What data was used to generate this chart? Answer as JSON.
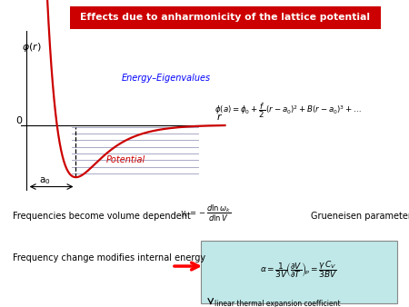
{
  "title": "Effects due to anharmonicity of the lattice potential",
  "title_bg": "#cc0000",
  "title_color": "white",
  "phi_label": "$\\phi(r)$",
  "r_label": "r",
  "a0_label": "a$_0$",
  "zero_label": "0",
  "energy_eigenvalues_label": "Energy–Eigenvalues",
  "potential_label": "Potential",
  "line1": "Frequencies become volume dependent",
  "grueneisen": "Grueneisen parameter",
  "line2": "Frequency change modifies internal energy",
  "linear_exp": "linear thermal expansion coefficient",
  "box_color": "#c0e8e8",
  "box_edge_color": "#888888",
  "horizontal_lines_color": "#9999bb",
  "curve_color": "#cc0000",
  "eigenvalue_text_color": "blue",
  "potential_text_color": "#cc0000",
  "r0": 1.3,
  "phi0": 1.0,
  "a_morse": 1.4,
  "n_lines": 8,
  "xlim": [
    -0.15,
    5.2
  ],
  "ylim": [
    -1.25,
    1.8
  ]
}
